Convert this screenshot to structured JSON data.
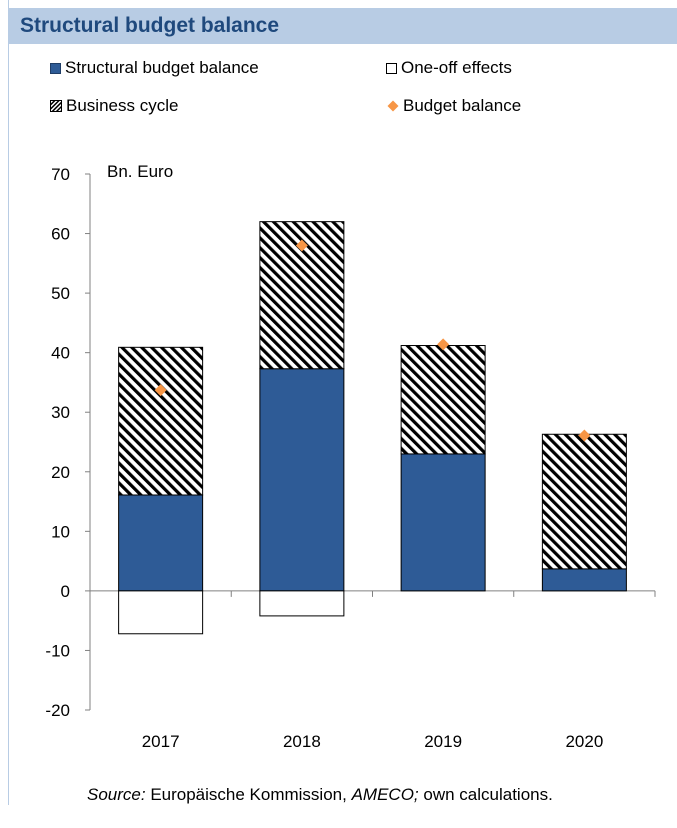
{
  "header": {
    "title": "Structural budget balance"
  },
  "legend": {
    "items": [
      {
        "label": "Structural budget balance",
        "swatch": "solid",
        "color": "#2e5b96"
      },
      {
        "label": "One-off effects",
        "swatch": "hollow",
        "color": "#ffffff"
      },
      {
        "label": "Business cycle",
        "swatch": "hatch",
        "color": "#000000"
      },
      {
        "label": "Budget balance",
        "swatch": "diamond",
        "color": "#f79646"
      }
    ]
  },
  "chart_data": {
    "type": "bar",
    "stacked": true,
    "unit_label": "Bn. Euro",
    "categories": [
      "2017",
      "2018",
      "2019",
      "2020"
    ],
    "ylim": [
      -20,
      70
    ],
    "yticks": [
      "70",
      "60",
      "50",
      "40",
      "30",
      "20",
      "10",
      "0",
      "-10",
      "-20"
    ],
    "grid": false,
    "series": [
      {
        "name": "Structural budget balance",
        "type": "bar",
        "color": "#2e5b96",
        "values": [
          16.1,
          37.3,
          23.0,
          3.7
        ]
      },
      {
        "name": "One-off effects",
        "type": "bar",
        "color": "#ffffff",
        "values": [
          -7.2,
          -4.2,
          0,
          0
        ]
      },
      {
        "name": "Business cycle",
        "type": "bar",
        "pattern": "hatch",
        "values": [
          24.8,
          24.7,
          18.2,
          22.6
        ]
      },
      {
        "name": "Budget balance",
        "type": "marker",
        "color": "#f79646",
        "values": [
          33.7,
          58.0,
          41.4,
          26.1
        ]
      }
    ]
  },
  "footer": {
    "source_label": "Source:",
    "source_org": " Europäische Kommission, ",
    "source_db": "AMECO;",
    "source_rest": " own calculations."
  }
}
